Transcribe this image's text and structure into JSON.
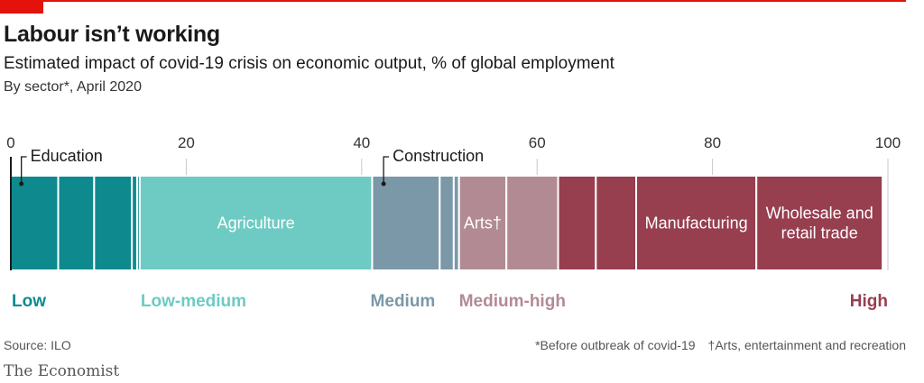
{
  "header": {
    "title": "Labour isn’t working",
    "subtitle": "Estimated impact of covid-19 crisis on economic output, % of global employment",
    "byline": "By sector*, April 2020"
  },
  "footer": {
    "source": "Source: ILO",
    "note_before": "*Before outbreak of covid-19",
    "note_arts": "†Arts, entertainment and recreation",
    "brand": "The Economist"
  },
  "chart_data": {
    "type": "bar",
    "orientation": "horizontal-stacked",
    "xlim": [
      0,
      100
    ],
    "ticks": [
      0,
      20,
      40,
      60,
      80,
      100
    ],
    "grid": false,
    "segments": [
      {
        "category": "Low",
        "value": 5.4,
        "label": ""
      },
      {
        "category": "Low",
        "value": 4.1,
        "label": ""
      },
      {
        "category": "Low",
        "value": 4.3,
        "label": ""
      },
      {
        "category": "Low",
        "value": 0.6,
        "label": ""
      },
      {
        "category": "Low",
        "value": 0.3,
        "label": ""
      },
      {
        "category": "Low-medium",
        "value": 26.5,
        "label": "Agriculture"
      },
      {
        "category": "Medium",
        "value": 7.7,
        "label": ""
      },
      {
        "category": "Medium",
        "value": 1.6,
        "label": ""
      },
      {
        "category": "Medium",
        "value": 0.6,
        "label": ""
      },
      {
        "category": "Medium-high",
        "value": 5.4,
        "label": "Arts†"
      },
      {
        "category": "Medium-high",
        "value": 5.9,
        "label": ""
      },
      {
        "category": "High",
        "value": 4.3,
        "label": ""
      },
      {
        "category": "High",
        "value": 4.6,
        "label": ""
      },
      {
        "category": "High",
        "value": 13.7,
        "label": "Manufacturing"
      },
      {
        "category": "High",
        "value": 14.4,
        "label": "Wholesale and\nretail trade"
      }
    ],
    "callouts": [
      {
        "label": "Education",
        "at": 1.2
      },
      {
        "label": "Construction",
        "at": 42.5
      }
    ],
    "categories": [
      {
        "name": "Low",
        "color": "#0e8a8f",
        "label_at": 0
      },
      {
        "name": "Low-medium",
        "color": "#6dcbc3",
        "label_at": 14.7
      },
      {
        "name": "Medium",
        "color": "#7a98a8",
        "label_at": 40.9
      },
      {
        "name": "Medium-high",
        "color": "#b28a94",
        "label_at": 51.0
      },
      {
        "name": "High",
        "color": "#973e4f",
        "label_at": 100
      }
    ]
  }
}
